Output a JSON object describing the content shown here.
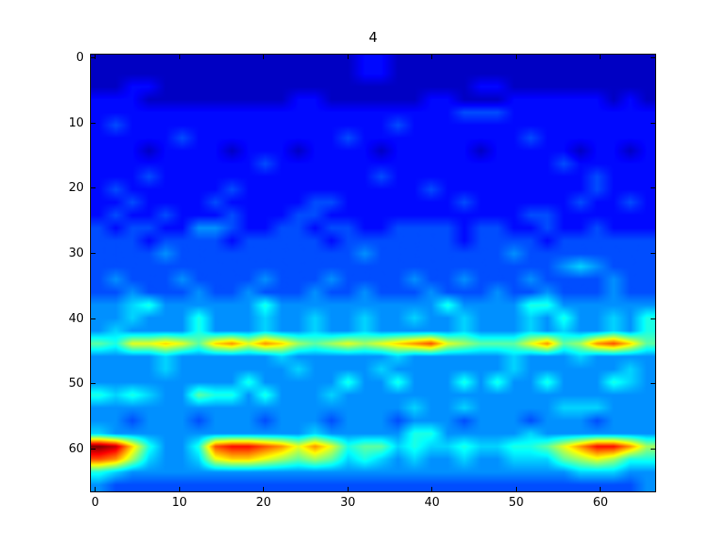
{
  "figure": {
    "background": "#ffffff"
  },
  "colors": {
    "axis": "#000000",
    "background": "#ffffff",
    "cmap_low": "#00007f",
    "cmap_high": "#7f0000"
  },
  "chart_data": {
    "type": "heatmap",
    "title": "4",
    "xlabel": "",
    "ylabel": "",
    "colormap": "jet",
    "interpolation": "bilinear",
    "legend": "none",
    "grid": false,
    "xticks": [
      0,
      10,
      20,
      30,
      40,
      50,
      60
    ],
    "yticks": [
      0,
      10,
      20,
      30,
      40,
      50,
      60
    ],
    "x_extent": [
      -0.5,
      66.5
    ],
    "y_extent": [
      -0.5,
      66.5
    ],
    "y_inverted": true,
    "value_range": [
      0,
      15
    ],
    "grid_rows": 34,
    "grid_cols": 34,
    "data_units_per_cell": 2,
    "values_encoding": "hex digit per cell, 0=min (dark blue) to f=max (dark red), rows top to bottom, approximate intensities read from image",
    "values_hex_rows": [
      "1111111111111111221111111111111111",
      "1111111111111111221111111111111111",
      "1122111111111111111111122111111111",
      "2221111111112211111122111222222121",
      "2222222222222222222222333222222222",
      "2322222222222222223222222222222222",
      "2222232222222223222222222232222222",
      "2221222212221222212222212222212212",
      "2222222222322222222222222222322222",
      "2223222222222222232222222222223222",
      "2322222232222222222232222222223222",
      "2232222322222332222222322222232232",
      "2322322232223322222222222233222222",
      "3233224432233233223333233223223222",
      "3332333323333323333333233332333333",
      "3333433333333333433333333433333333",
      "3333333333333333333333333333454333",
      "3433343333433343333433433343333433",
      "3343334334333433433343334334333433",
      "4456444444644444444446444466444444",
      "4454446444544544544544544454644546",
      "4544446444544544544444544454544546",
      "7699a97ab9ba878989abc987779b78bca7",
      "4444544444454444445444444544454444",
      "4444544444445444454444444544444454",
      "4444444446444446446444646446444654",
      "6565447664644454444444444444444444",
      "4444444444444444444544544444555444",
      "4434443444344434443444344434443444",
      "5444444444444544444664444454444444",
      "fea6446cddcb9b967756556556679bddb8",
      "cb854459aa98787565454454455578 986",
      "6544444444444444444444444444455544",
      "4333333333333333333333333333333334"
    ]
  }
}
